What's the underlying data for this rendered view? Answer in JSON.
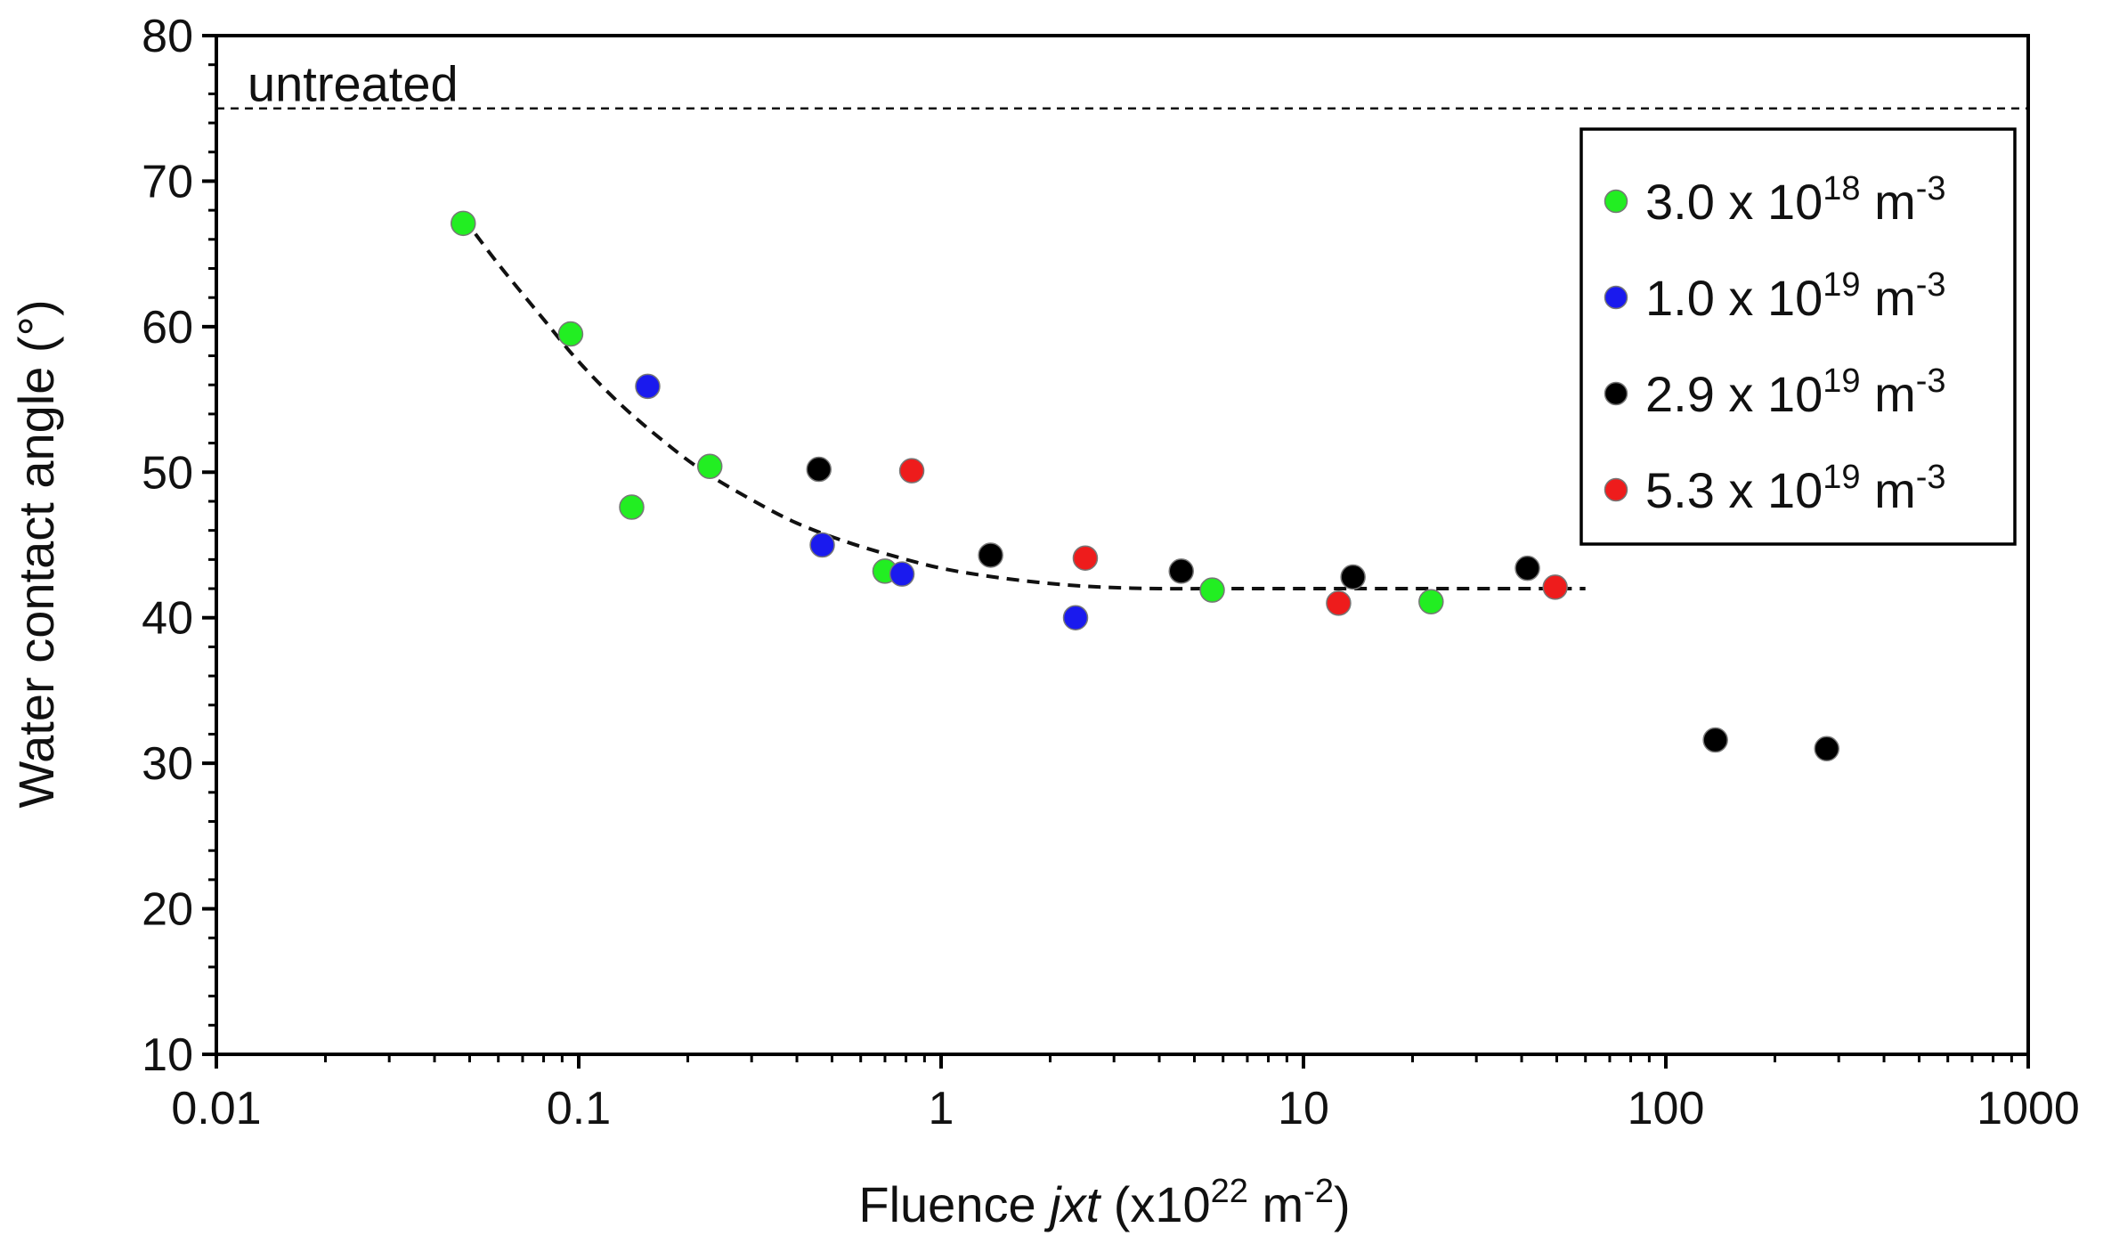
{
  "chart_data": {
    "type": "scatter",
    "title": "",
    "xscale": "log",
    "xlim": [
      0.01,
      1000
    ],
    "ylim": [
      10,
      80
    ],
    "xticks": [
      0.01,
      0.1,
      1,
      10,
      100,
      1000
    ],
    "xtick_labels": [
      "0.01",
      "0.1",
      "1",
      "10",
      "100",
      "1000"
    ],
    "yticks": [
      10,
      20,
      30,
      40,
      50,
      60,
      70,
      80
    ],
    "ytick_labels": [
      "10",
      "20",
      "30",
      "40",
      "50",
      "60",
      "70",
      "80"
    ],
    "xlabel": {
      "prefix": "Fluence ",
      "italic": "jxt",
      "mid": " (x10",
      "sup": "22",
      "unit": " m",
      "unit_sup": "-2",
      "suffix": ")"
    },
    "ylabel": "Water contact angle (°)",
    "reference_line": {
      "label": "untreated",
      "y": 75
    },
    "fit_curve": {
      "style": "dashed",
      "x": [
        0.048,
        0.06,
        0.08,
        0.1,
        0.13,
        0.17,
        0.22,
        0.3,
        0.4,
        0.55,
        0.75,
        1.0,
        1.4,
        2.0,
        2.8,
        4.0,
        6.0,
        10,
        20,
        40,
        60
      ],
      "y": [
        67.5,
        64.3,
        60.5,
        57.6,
        54.7,
        52.2,
        50.1,
        48.1,
        46.5,
        45.2,
        44.2,
        43.4,
        42.8,
        42.35,
        42.1,
        42.0,
        42.0,
        42.0,
        42.0,
        42.0,
        42.0
      ]
    },
    "legend_position": "top-right",
    "series": [
      {
        "name": "3.0 x 10",
        "exp": "18",
        "unit": " m",
        "unit_exp": "-3",
        "color": "#22ee22",
        "x": [
          0.048,
          0.095,
          0.14,
          0.23,
          0.7,
          5.6,
          22.5
        ],
        "y": [
          67.1,
          59.5,
          47.6,
          50.4,
          43.2,
          41.9,
          41.1
        ]
      },
      {
        "name": "1.0 x 10",
        "exp": "19",
        "unit": " m",
        "unit_exp": "-3",
        "color": "#1a1aee",
        "x": [
          0.155,
          0.47,
          0.78,
          2.35
        ],
        "y": [
          55.9,
          45.0,
          43.0,
          40.0
        ]
      },
      {
        "name": "2.9 x 10",
        "exp": "19",
        "unit": " m",
        "unit_exp": "-3",
        "color": "#000000",
        "x": [
          0.46,
          1.37,
          4.6,
          13.7,
          41.5,
          137,
          278
        ],
        "y": [
          50.2,
          44.3,
          43.2,
          42.8,
          43.4,
          31.6,
          31.0
        ]
      },
      {
        "name": "5.3 x 10",
        "exp": "19",
        "unit": " m",
        "unit_exp": "-3",
        "color": "#ee1c1c",
        "x": [
          0.83,
          2.5,
          12.5,
          49.5
        ],
        "y": [
          50.1,
          44.1,
          41.0,
          42.1
        ]
      }
    ]
  }
}
